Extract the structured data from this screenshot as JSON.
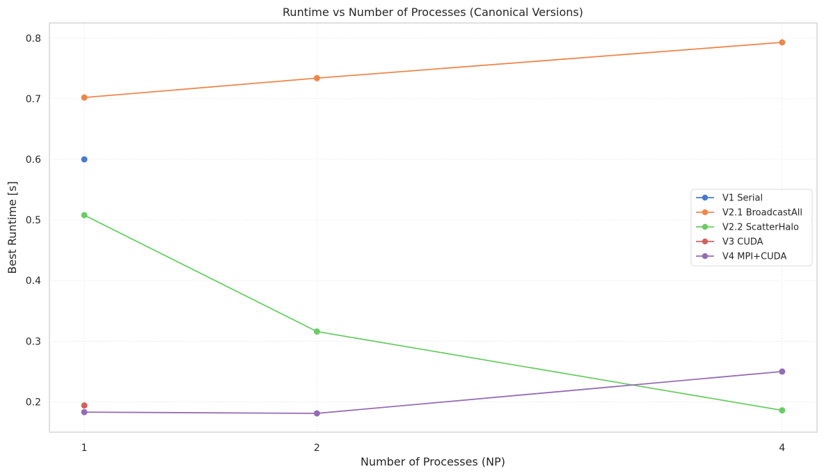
{
  "chart_data": {
    "type": "line",
    "title": "Runtime vs Number of Processes (Canonical Versions)",
    "xlabel": "Number of Processes (NP)",
    "ylabel": "Best Runtime [s]",
    "x_ticks": [
      1,
      2,
      4
    ],
    "y_ticks": [
      "0.2",
      "0.3",
      "0.4",
      "0.5",
      "0.6",
      "0.7",
      "0.8"
    ],
    "xlim": [
      0.85,
      4.15
    ],
    "ylim": [
      0.15,
      0.825
    ],
    "grid": true,
    "legend_position": "center-right",
    "series": [
      {
        "name": "V1 Serial",
        "color": "#4878d0",
        "x": [
          1
        ],
        "y": [
          0.6
        ]
      },
      {
        "name": "V2.1 BroadcastAll",
        "color": "#ee854a",
        "x": [
          1,
          2,
          4
        ],
        "y": [
          0.702,
          0.734,
          0.793
        ]
      },
      {
        "name": "V2.2 ScatterHalo",
        "color": "#6acc64",
        "x": [
          1,
          2,
          4
        ],
        "y": [
          0.508,
          0.316,
          0.186
        ]
      },
      {
        "name": "V3 CUDA",
        "color": "#d65f5f",
        "x": [
          1
        ],
        "y": [
          0.194
        ]
      },
      {
        "name": "V4 MPI+CUDA",
        "color": "#956cb4",
        "x": [
          1,
          2,
          4
        ],
        "y": [
          0.183,
          0.181,
          0.25
        ]
      }
    ]
  }
}
